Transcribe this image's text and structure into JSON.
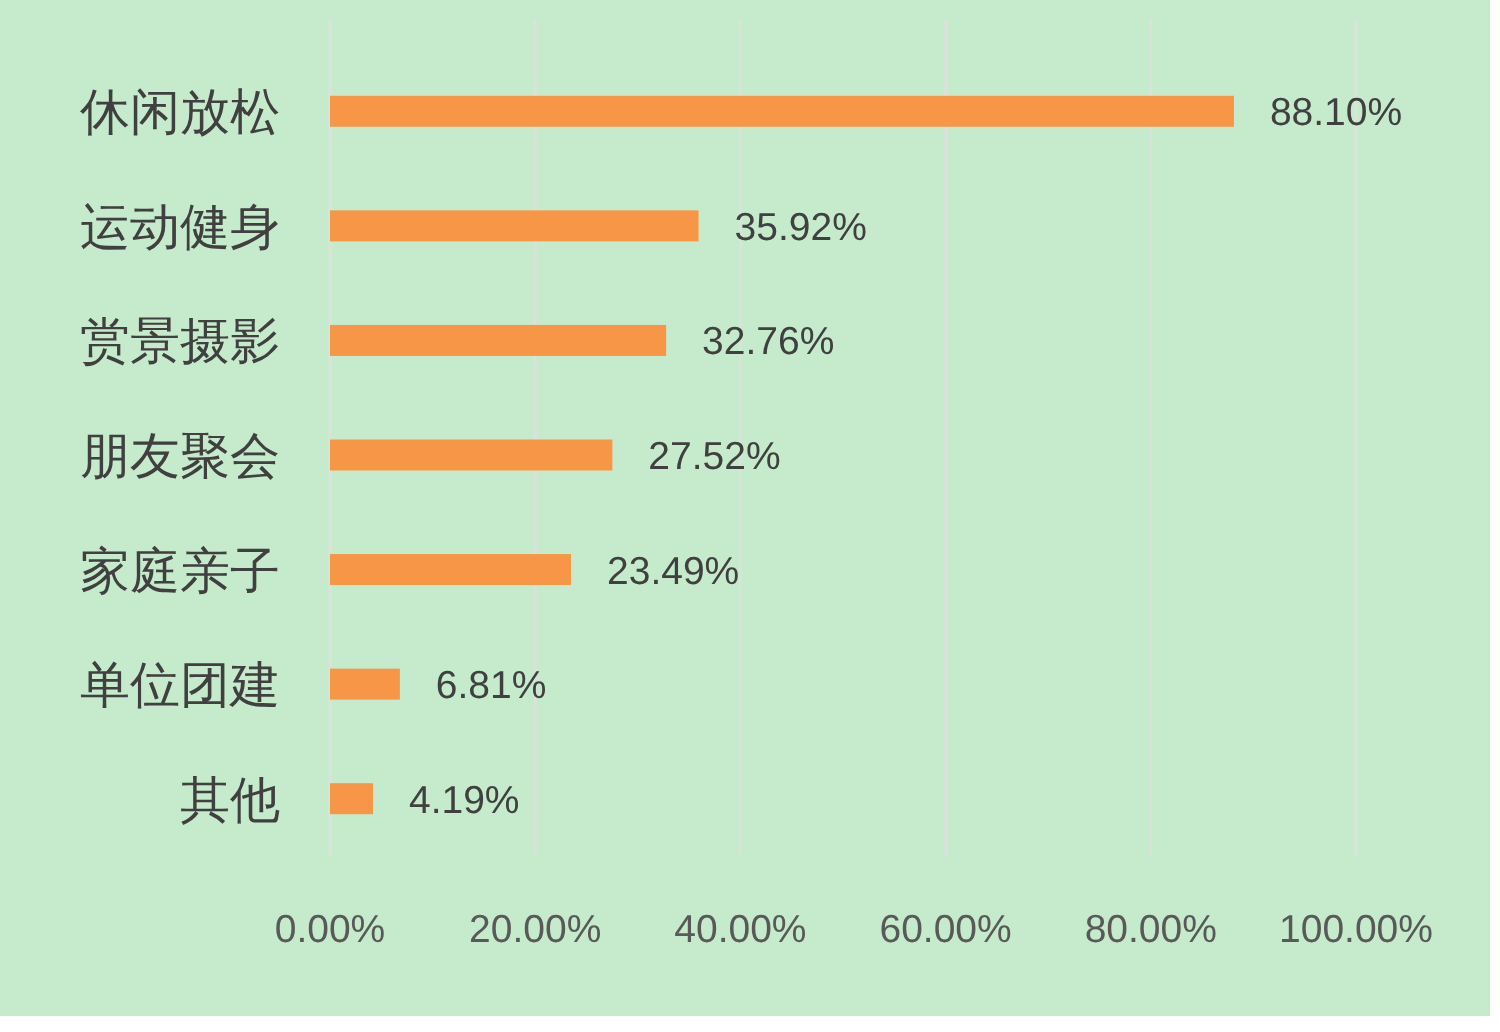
{
  "chart_data": {
    "type": "bar",
    "orientation": "horizontal",
    "categories": [
      "休闲放松",
      "运动健身",
      "赏景摄影",
      "朋友聚会",
      "家庭亲子",
      "单位团建",
      "其他"
    ],
    "values": [
      88.1,
      35.92,
      32.76,
      27.52,
      23.49,
      6.81,
      4.19
    ],
    "color": "#f79646",
    "value_labels": [
      "88.10%",
      "35.92%",
      "32.76%",
      "27.52%",
      "23.49%",
      "6.81%",
      "4.19%"
    ],
    "xlim": [
      0,
      100
    ],
    "xticks": [
      {
        "value": 0,
        "label": "0.00%"
      },
      {
        "value": 20,
        "label": "20.00%"
      },
      {
        "value": 40,
        "label": "40.00%"
      },
      {
        "value": 60,
        "label": "60.00%"
      },
      {
        "value": 80,
        "label": "80.00%"
      },
      {
        "value": 100,
        "label": "100.00%"
      }
    ],
    "grid": "x"
  }
}
